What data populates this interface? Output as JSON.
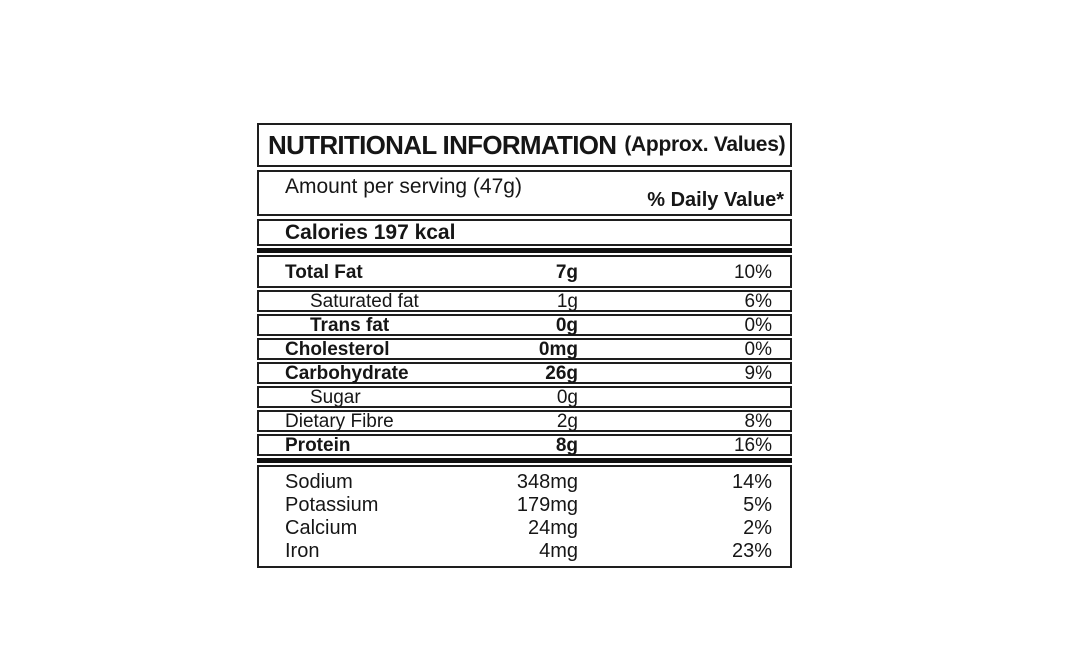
{
  "label": {
    "title": "NUTRITIONAL INFORMATION",
    "title_suffix": "(Approx. Values)",
    "serving_line": "Amount per serving (47g)",
    "daily_value_header": "% Daily Value*",
    "calories_line": "Calories 197 kcal",
    "colors": {
      "text": "#161616",
      "border": "#1e1e1e",
      "divider_bar": "#101010",
      "background": "#ffffff"
    },
    "nutrient_rows": [
      {
        "name": "Total Fat",
        "amount": "7g",
        "dv": "10%",
        "bold": true,
        "indent": false
      },
      {
        "name": "Saturated fat",
        "amount": "1g",
        "dv": "6%",
        "bold": false,
        "indent": true
      },
      {
        "name": "Trans fat",
        "amount": "0g",
        "dv": "0%",
        "bold": true,
        "indent": true
      },
      {
        "name": "Cholesterol",
        "amount": "0mg",
        "dv": "0%",
        "bold": true,
        "indent": false
      },
      {
        "name": "Carbohydrate",
        "amount": "26g",
        "dv": "9%",
        "bold": true,
        "indent": false
      },
      {
        "name": "Sugar",
        "amount": "0g",
        "dv": "",
        "bold": false,
        "indent": true
      },
      {
        "name": "Dietary Fibre",
        "amount": "2g",
        "dv": "8%",
        "bold": false,
        "indent": false
      },
      {
        "name": "Protein",
        "amount": "8g",
        "dv": "16%",
        "bold": true,
        "indent": false
      }
    ],
    "mineral_rows": [
      {
        "name": "Sodium",
        "amount": "348mg",
        "dv": "14%"
      },
      {
        "name": "Potassium",
        "amount": "179mg",
        "dv": "5%"
      },
      {
        "name": "Calcium",
        "amount": "24mg",
        "dv": "2%"
      },
      {
        "name": "Iron",
        "amount": "4mg",
        "dv": "23%"
      }
    ]
  }
}
